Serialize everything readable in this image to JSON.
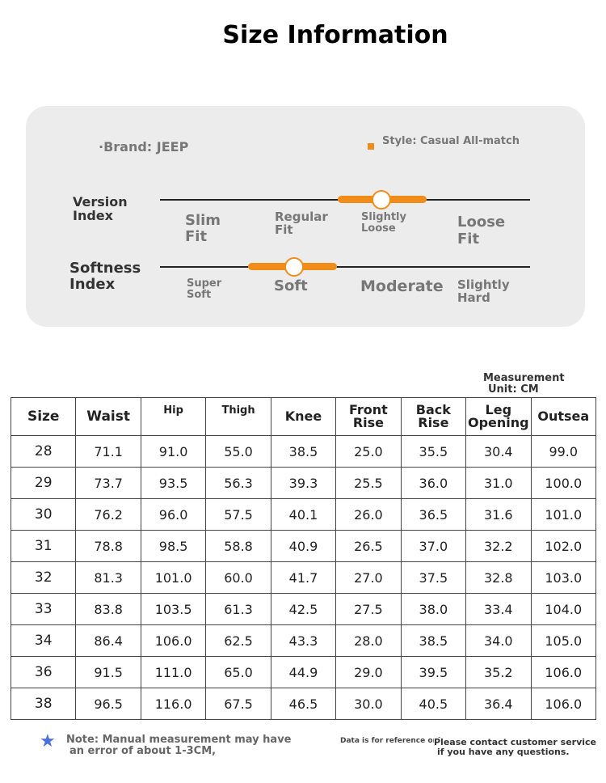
{
  "header": {
    "title": "Size Information"
  },
  "panel": {
    "brand": "·Brand: JEEP",
    "style": "Style: Casual All-match",
    "version": {
      "label": [
        "Version",
        "Index"
      ],
      "options": [
        [
          "Slim",
          "Fit"
        ],
        [
          "Regular",
          "Fit"
        ],
        [
          "Slightly",
          "Loose"
        ],
        [
          "Loose",
          "Fit"
        ]
      ]
    },
    "softness": {
      "label": [
        "Softness",
        "Index"
      ],
      "options": [
        [
          "Super",
          "Soft"
        ],
        [
          "Soft"
        ],
        [
          "Moderate"
        ],
        [
          "Slightly",
          "Hard"
        ]
      ]
    }
  },
  "unit": [
    "Measurement",
    "Unit: CM"
  ],
  "table": {
    "columns": [
      "Size",
      "Waist",
      "Hip",
      "Thigh",
      "Knee",
      "Front Rise",
      "Back Rise",
      "Leg Opening",
      "Outsea"
    ],
    "rows": [
      [
        "28",
        "71.1",
        "91.0",
        "55.0",
        "38.5",
        "25.0",
        "35.5",
        "30.4",
        "99.0"
      ],
      [
        "29",
        "73.7",
        "93.5",
        "56.3",
        "39.3",
        "25.5",
        "36.0",
        "31.0",
        "100.0"
      ],
      [
        "30",
        "76.2",
        "96.0",
        "57.5",
        "40.1",
        "26.0",
        "36.5",
        "31.6",
        "101.0"
      ],
      [
        "31",
        "78.8",
        "98.5",
        "58.8",
        "40.9",
        "26.5",
        "37.0",
        "32.2",
        "102.0"
      ],
      [
        "32",
        "81.3",
        "101.0",
        "60.0",
        "41.7",
        "27.0",
        "37.5",
        "32.8",
        "103.0"
      ],
      [
        "33",
        "83.8",
        "103.5",
        "61.3",
        "42.5",
        "27.5",
        "38.0",
        "33.4",
        "104.0"
      ],
      [
        "34",
        "86.4",
        "106.0",
        "62.5",
        "43.3",
        "28.0",
        "38.5",
        "34.0",
        "105.0"
      ],
      [
        "36",
        "91.5",
        "111.0",
        "65.0",
        "44.9",
        "29.0",
        "39.5",
        "35.2",
        "106.0"
      ],
      [
        "38",
        "96.5",
        "116.0",
        "67.5",
        "46.5",
        "30.0",
        "40.5",
        "36.4",
        "106.0"
      ]
    ]
  },
  "footer": {
    "note": [
      "Note: Manual measurement may have",
      "an error of about 1-3CM,"
    ],
    "reference": "Data is for reference only",
    "contact": [
      "Please contact customer service",
      "if you have any questions."
    ]
  }
}
